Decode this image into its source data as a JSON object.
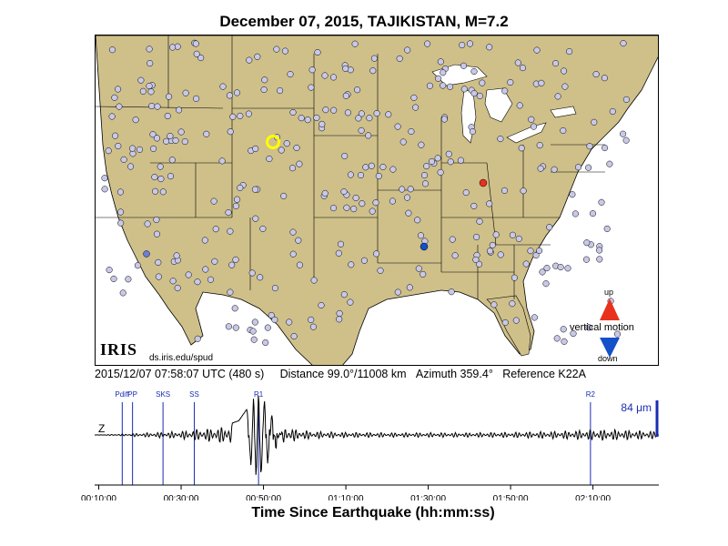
{
  "title": "December 07, 2015, TAJIKISTAN, M=7.2",
  "logo": {
    "text": "IRIS",
    "url": "ds.iris.edu/spud"
  },
  "legend": {
    "up": "up",
    "down": "down",
    "motion": "vertical motion",
    "up_color": "#e8321e",
    "down_color": "#1450c8"
  },
  "info": {
    "time": "2015/12/07 07:58:07 UTC (480 s)",
    "distance": "Distance  99.0°/11008 km",
    "azimuth": "Azimuth 359.4°",
    "reference": "Reference K22A"
  },
  "colors": {
    "land": "#cfc08a",
    "water": "#ffffff",
    "station_fill": "#c8c8e8",
    "phase_line": "#1a2cb4",
    "trace": "#000000",
    "scale_bar": "#1a2cb4"
  },
  "chart_data": {
    "type": "line",
    "xlabel": "Time Since Earthquake (hh:mm:ss)",
    "component": "Z",
    "scale_label": "84 μm",
    "x_ticks": [
      "00:10:00",
      "00:30:00",
      "00:50:00",
      "01:10:00",
      "01:30:00",
      "01:50:00",
      "02:10:00"
    ],
    "x_tick_minutes": [
      10,
      30,
      50,
      70,
      90,
      110,
      130
    ],
    "xlim_minutes": [
      9,
      146
    ],
    "phases": [
      {
        "name": "Pdiff",
        "minute": 15.7
      },
      {
        "name": "PP",
        "minute": 18.2
      },
      {
        "name": "SKS",
        "minute": 25.6
      },
      {
        "name": "SS",
        "minute": 33.2
      },
      {
        "name": "R1",
        "minute": 48.8
      },
      {
        "name": "R2",
        "minute": 129.4
      }
    ],
    "trace": [
      [
        9,
        0
      ],
      [
        15.7,
        0.02
      ],
      [
        18,
        0.03
      ],
      [
        25,
        0.06
      ],
      [
        30,
        0.08
      ],
      [
        33,
        0.12
      ],
      [
        36,
        0.14
      ],
      [
        40,
        0.18
      ],
      [
        44,
        0.3
      ],
      [
        46,
        0.55
      ],
      [
        47,
        -0.7
      ],
      [
        47.6,
        0.9
      ],
      [
        48.2,
        -1.0
      ],
      [
        48.8,
        1.0
      ],
      [
        49.4,
        -0.95
      ],
      [
        50.2,
        0.8
      ],
      [
        51,
        -0.6
      ],
      [
        52,
        0.45
      ],
      [
        53,
        -0.3
      ],
      [
        55,
        0.2
      ],
      [
        58,
        0.12
      ],
      [
        62,
        0.08
      ],
      [
        70,
        0.06
      ],
      [
        80,
        0.05
      ],
      [
        90,
        0.05
      ],
      [
        100,
        0.05
      ],
      [
        110,
        0.06
      ],
      [
        120,
        0.08
      ],
      [
        126,
        0.1
      ],
      [
        130,
        0.12
      ],
      [
        135,
        0.12
      ],
      [
        140,
        0.1
      ],
      [
        146,
        0.08
      ]
    ]
  }
}
